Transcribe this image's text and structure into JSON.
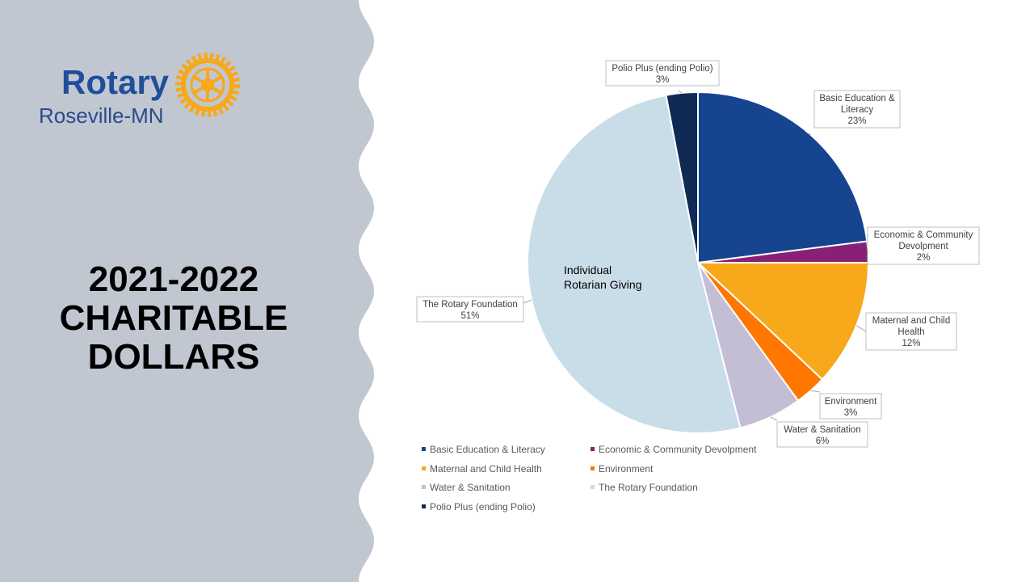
{
  "logo": {
    "brand": "Rotary",
    "subtitle": "Roseville-MN",
    "emblem_text": "ROTARY INTERNATIONAL"
  },
  "title": {
    "line1": "2021-2022",
    "line2": "CHARITABLE",
    "line3": "DOLLARS"
  },
  "colors": {
    "panel": "#c1c7d1",
    "brand_blue": "#1f4e9a",
    "gold": "#f7a81b"
  },
  "chart_data": {
    "type": "pie",
    "title": "",
    "annotation": "Individual Rotarian Giving",
    "legend_position": "bottom",
    "slices": [
      {
        "label": "Basic Education & Literacy",
        "value": 23,
        "display": "23%",
        "color": "#17448f"
      },
      {
        "label": "Economic & Community Devolpment",
        "value": 2,
        "display": "2%",
        "color": "#872175"
      },
      {
        "label": "Maternal and Child Health",
        "value": 12,
        "display": "12%",
        "color": "#f7a81b"
      },
      {
        "label": "Environment",
        "value": 3,
        "display": "3%",
        "color": "#ff7600"
      },
      {
        "label": "Water & Sanitation",
        "value": 6,
        "display": "6%",
        "color": "#c4bed4"
      },
      {
        "label": "The Rotary Foundation",
        "value": 51,
        "display": "51%",
        "color": "#c9dde8"
      },
      {
        "label": "Polio Plus (ending Polio)",
        "value": 3,
        "display": "3%",
        "color": "#0e2a55"
      }
    ]
  }
}
